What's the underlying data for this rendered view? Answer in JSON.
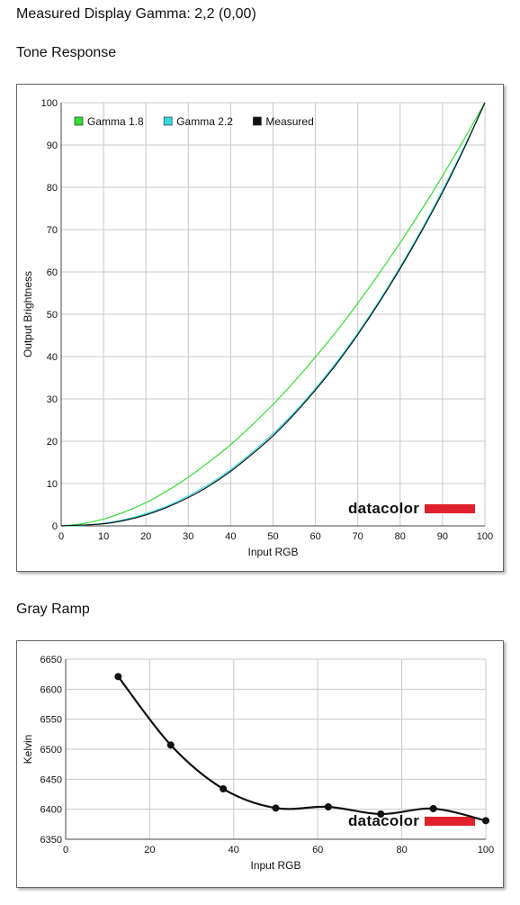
{
  "page": {
    "title": "Measured Display Gamma: 2,2 (0,00)"
  },
  "sections": {
    "tone_response": "Tone Response",
    "gray_ramp": "Gray Ramp"
  },
  "watermark": {
    "text": "datacolor",
    "bar_color": "#e0202a"
  },
  "chart_data": [
    {
      "type": "line",
      "title": "Tone Response",
      "xlabel": "Input RGB",
      "ylabel": "Output Brightness",
      "xlim": [
        0,
        100
      ],
      "ylim": [
        0,
        100
      ],
      "xticks": [
        0,
        10,
        20,
        30,
        40,
        50,
        60,
        70,
        80,
        90,
        100
      ],
      "yticks": [
        0,
        10,
        20,
        30,
        40,
        50,
        60,
        70,
        80,
        90,
        100
      ],
      "grid": true,
      "legend_position": "top-left",
      "series": [
        {
          "name": "Gamma 1.8",
          "color": "#33dd33",
          "x": [
            0,
            5,
            10,
            15,
            20,
            25,
            30,
            35,
            40,
            45,
            50,
            55,
            60,
            65,
            70,
            75,
            80,
            85,
            90,
            95,
            100
          ],
          "values": [
            0,
            0.5,
            1.6,
            3.3,
            5.5,
            8.3,
            11.5,
            15.2,
            19.2,
            23.8,
            28.7,
            34.1,
            39.9,
            46.0,
            52.6,
            59.6,
            66.9,
            74.6,
            82.7,
            91.2,
            100
          ]
        },
        {
          "name": "Gamma 2.2",
          "color": "#33dddd",
          "x": [
            0,
            5,
            10,
            15,
            20,
            25,
            30,
            35,
            40,
            45,
            50,
            55,
            60,
            65,
            70,
            75,
            80,
            85,
            90,
            95,
            100
          ],
          "values": [
            0,
            0.1,
            0.6,
            1.5,
            2.9,
            4.7,
            7.1,
            9.9,
            13.3,
            17.3,
            21.8,
            26.8,
            32.5,
            38.7,
            45.6,
            53.1,
            61.2,
            69.9,
            79.3,
            89.3,
            100
          ]
        },
        {
          "name": "Measured",
          "color": "#111111",
          "x": [
            0,
            5,
            10,
            15,
            20,
            25,
            30,
            35,
            40,
            45,
            50,
            55,
            60,
            65,
            70,
            75,
            80,
            85,
            90,
            95,
            100
          ],
          "values": [
            0,
            0.2,
            0.5,
            1.3,
            2.6,
            4.4,
            6.7,
            9.5,
            12.9,
            16.9,
            21.3,
            26.4,
            32.1,
            38.3,
            45.2,
            52.7,
            60.8,
            69.5,
            78.8,
            89.0,
            100
          ]
        }
      ]
    },
    {
      "type": "line",
      "title": "Gray Ramp",
      "xlabel": "Input RGB",
      "ylabel": "Kelvin",
      "xlim": [
        0,
        100
      ],
      "ylim": [
        6350,
        6650
      ],
      "xticks": [
        0,
        20,
        40,
        60,
        80,
        100
      ],
      "yticks": [
        6350,
        6400,
        6450,
        6500,
        6550,
        6600,
        6650
      ],
      "grid": true,
      "series": [
        {
          "name": "",
          "color": "#111111",
          "x": [
            12.5,
            25,
            37.5,
            50,
            62.5,
            75,
            87.5,
            100
          ],
          "values": [
            6621,
            6507,
            6434,
            6402,
            6404,
            6392,
            6401,
            6381
          ]
        }
      ]
    }
  ]
}
